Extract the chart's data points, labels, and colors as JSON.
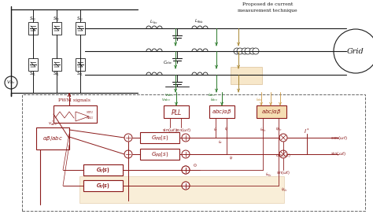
{
  "bg_color": "#ffffff",
  "dark_color": "#1a1a1a",
  "red_color": "#8B1A1A",
  "green_color": "#2a7a2a",
  "teal_color": "#3a8a7a",
  "orange_bg": "#f5deb3",
  "grid_label": "Grid",
  "pwm_label": "PWM signals",
  "title_line1": "Proposed de current",
  "title_line2": "measurement technique"
}
